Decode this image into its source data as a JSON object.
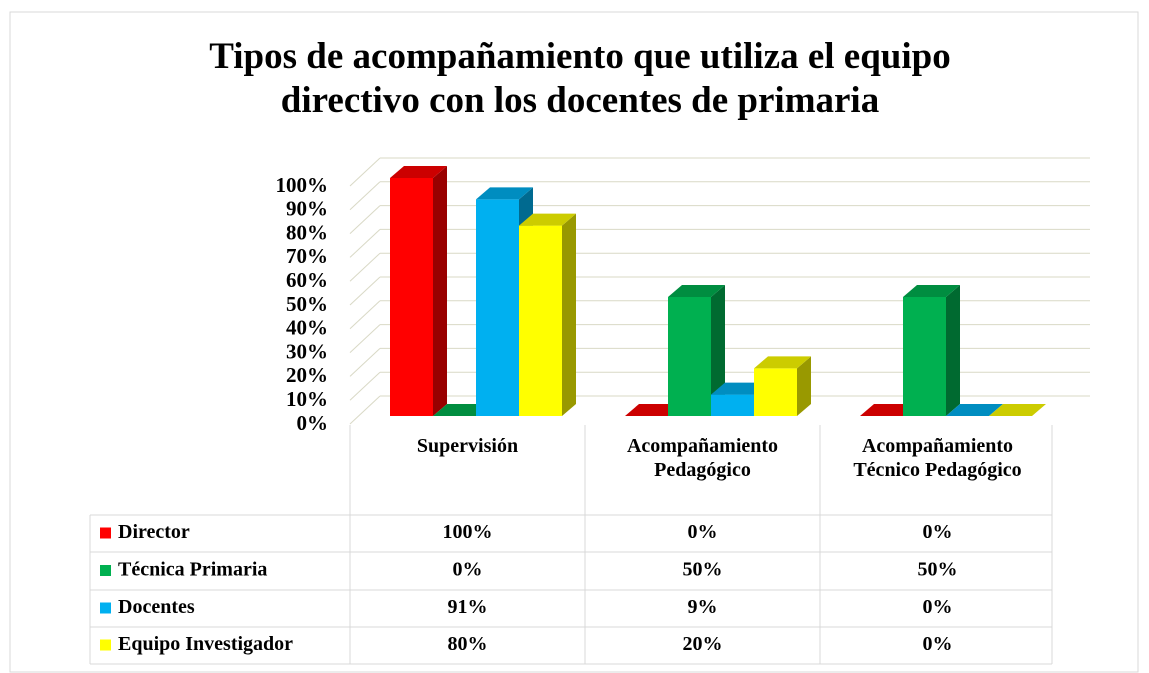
{
  "chart_data": {
    "type": "bar",
    "title": "Tipos de acompañamiento que utiliza el equipo directivo con los docentes de primaria",
    "categories": [
      "Supervisión",
      "Acompañamiento Pedagógico",
      "Acompañamiento Técnico Pedagógico"
    ],
    "series": [
      {
        "name": "Director",
        "color": "#ff0000",
        "values": [
          100,
          0,
          0
        ],
        "value_labels": [
          "100%",
          "0%",
          "0%"
        ]
      },
      {
        "name": "Técnica Primaria",
        "color": "#00b050",
        "values": [
          0,
          50,
          50
        ],
        "value_labels": [
          "0%",
          "50%",
          "50%"
        ]
      },
      {
        "name": "Docentes",
        "color": "#00b0f0",
        "values": [
          91,
          9,
          0
        ],
        "value_labels": [
          "91%",
          "9%",
          "0%"
        ]
      },
      {
        "name": "Equipo Investigador",
        "color": "#ffff00",
        "values": [
          80,
          20,
          0
        ],
        "value_labels": [
          "80%",
          "20%",
          "0%"
        ]
      }
    ],
    "ylim": [
      0,
      100
    ],
    "yticks": [
      {
        "value": 0,
        "label": "0%"
      },
      {
        "value": 10,
        "label": "10%"
      },
      {
        "value": 20,
        "label": "20%"
      },
      {
        "value": 30,
        "label": "30%"
      },
      {
        "value": 40,
        "label": "40%"
      },
      {
        "value": 50,
        "label": "50%"
      },
      {
        "value": 60,
        "label": "60%"
      },
      {
        "value": 70,
        "label": "70%"
      },
      {
        "value": 80,
        "label": "80%"
      },
      {
        "value": 90,
        "label": "90%"
      },
      {
        "value": 100,
        "label": "100%"
      }
    ],
    "grid": true
  }
}
